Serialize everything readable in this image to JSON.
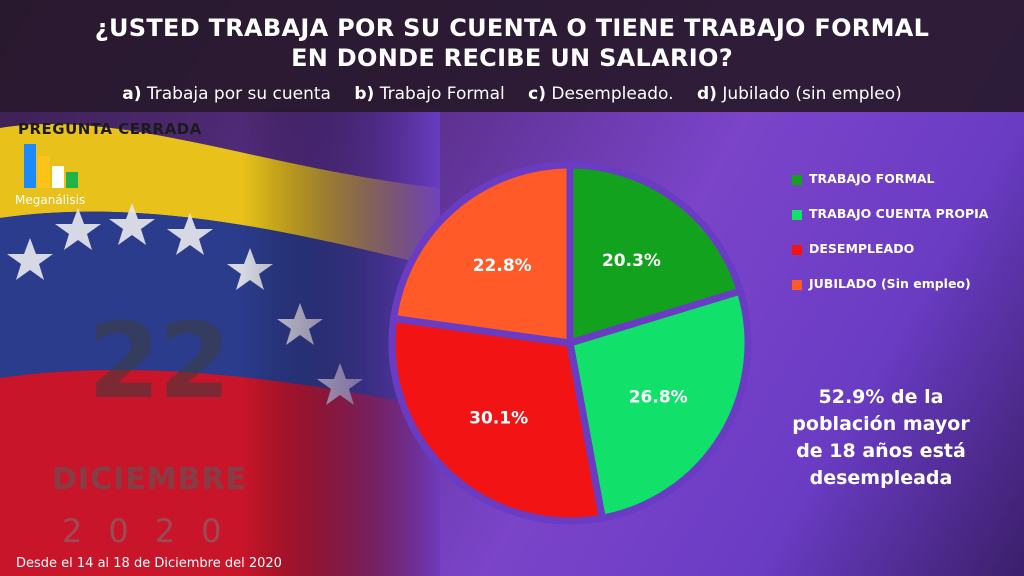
{
  "header": {
    "title_line1": "¿USTED TRABAJA POR SU CUENTA O TIENE TRABAJO FORMAL",
    "title_line2": "EN DONDE RECIBE UN SALARIO?",
    "options": [
      {
        "key": "a)",
        "text": "Trabaja por su cuenta"
      },
      {
        "key": "b)",
        "text": "Trabajo Formal"
      },
      {
        "key": "c)",
        "text": "Desempleado."
      },
      {
        "key": "d)",
        "text": "Jubilado (sin empleo)"
      }
    ]
  },
  "badge": "PREGUNTA  CERRADA",
  "logo": {
    "text": "Meganálisis",
    "icon": "bar-logo-icon"
  },
  "background": {
    "day": "22",
    "month": "DICIEMBRE",
    "year": "2020",
    "icon": "venezuela-flag-icon"
  },
  "footer": "Desde el 14 al 18 de Diciembre del 2020",
  "chart_data": {
    "type": "pie",
    "slices": [
      {
        "name": "TRABAJO FORMAL",
        "value": 20.3,
        "label": "20.3%",
        "color": "#13a21e"
      },
      {
        "name": "TRABAJO CUENTA PROPIA",
        "value": 26.8,
        "label": "26.8%",
        "color": "#11e06a"
      },
      {
        "name": "DESEMPLEADO",
        "value": 30.1,
        "label": "30.1%",
        "color": "#f21414"
      },
      {
        "name": "JUBILADO (Sin empleo)",
        "value": 22.8,
        "label": "22.8%",
        "color": "#ff5a28"
      }
    ],
    "legend": "right"
  },
  "note": {
    "lines": [
      "52.9% de la",
      "población mayor",
      "de 18 años está",
      "desempleada"
    ]
  }
}
